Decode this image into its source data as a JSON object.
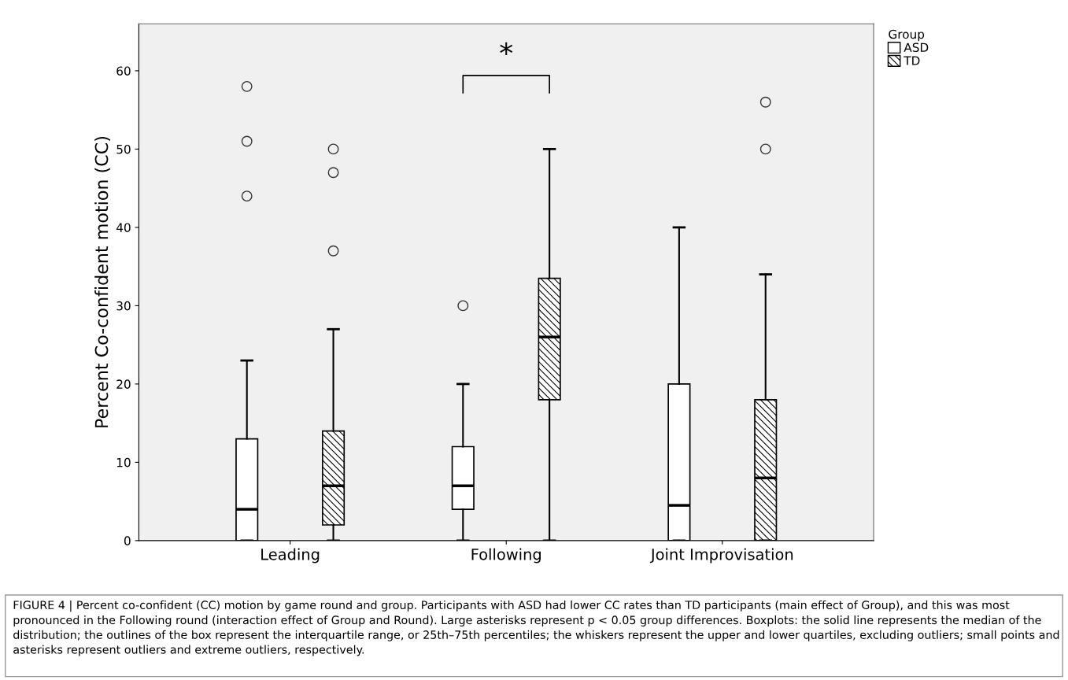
{
  "chart_data": {
    "type": "box",
    "ylabel": "Percent Co-confident motion (CC)",
    "legend_title": "Group",
    "legend": "top right",
    "grid": false,
    "categories": [
      "Leading",
      "Following",
      "Joint Improvisation"
    ],
    "ylim": [
      0,
      66
    ],
    "yticks": [
      0,
      10,
      20,
      30,
      40,
      50,
      60
    ],
    "series": [
      {
        "name": "ASD",
        "color": "#ffffff",
        "boxes": [
          {
            "low": 0,
            "q1": 0,
            "median": 4,
            "q3": 13,
            "high": 23,
            "outliers": [
              44,
              51,
              58
            ]
          },
          {
            "low": 0,
            "q1": 4,
            "median": 7,
            "q3": 12,
            "high": 20,
            "outliers": [
              30
            ]
          },
          {
            "low": 0,
            "q1": 0,
            "median": 4.5,
            "q3": 20,
            "high": 40
          }
        ]
      },
      {
        "name": "TD",
        "color": "#000000",
        "boxes": [
          {
            "low": 0,
            "q1": 2,
            "median": 7,
            "q3": 14,
            "high": 27,
            "outliers": [
              37,
              47,
              50
            ]
          },
          {
            "low": 0,
            "q1": 18,
            "median": 26,
            "q3": 33.5,
            "high": 50
          },
          {
            "low": 0,
            "q1": 0,
            "median": 8,
            "q3": 18,
            "high": 34,
            "outliers": [
              50,
              56
            ]
          }
        ]
      }
    ],
    "annotations": [
      "*",
      "FIGURE 4 | Percent co-confident (CC) motion by game round and group. Participants with ASD had lower CC rates than TD participants (main effect of Group), and this was most pronounced in the Following round (interaction effect of Group and Round). Large asterisks represent p < 0.05 group differences. Boxplots: the solid line represents the median of the distribution; the outlines of the box represent the interquartile range, or 25th–75th percentiles; the whiskers represent the upper and lower quartiles, excluding outliers; small points and asterisks represent outliers and extreme outliers, respectively."
    ]
  }
}
